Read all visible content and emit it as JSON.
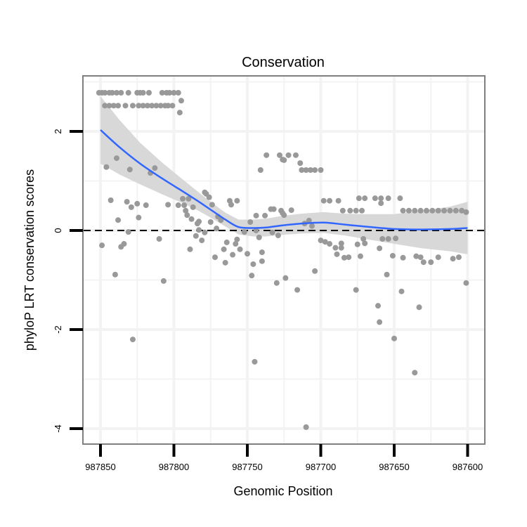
{
  "chart_data": {
    "type": "scatter",
    "title": "Conservation",
    "xlabel": "Genomic Position",
    "ylabel": "phyloP LRT conservation scores",
    "xlim": [
      987862,
      987588
    ],
    "x_reversed": true,
    "ylim": [
      -4.3,
      3.15
    ],
    "xticks": [
      987850,
      987800,
      987750,
      987700,
      987650,
      987600
    ],
    "xtick_labels": [
      "987850",
      "987800",
      "987750",
      "987700",
      "987650",
      "987600"
    ],
    "yticks": [
      2,
      0,
      -2,
      -4
    ],
    "ytick_labels": [
      "2",
      "0",
      "-2",
      "-4"
    ],
    "grid": true,
    "reference_line": {
      "y": 0,
      "style": "dashed",
      "color": "#000000"
    },
    "colors": {
      "points": "#999999",
      "smooth": "#3366ff",
      "ribbon": "#d6d6d6"
    },
    "points": [
      [
        987851,
        2.78
      ],
      [
        987849,
        2.78
      ],
      [
        987847,
        2.78
      ],
      [
        987844,
        2.78
      ],
      [
        987842,
        2.78
      ],
      [
        987839,
        2.78
      ],
      [
        987836,
        2.78
      ],
      [
        987831,
        2.78
      ],
      [
        987825,
        2.78
      ],
      [
        987823,
        2.78
      ],
      [
        987821,
        2.78
      ],
      [
        987817,
        2.78
      ],
      [
        987808,
        2.78
      ],
      [
        987805,
        2.78
      ],
      [
        987803,
        2.78
      ],
      [
        987800,
        2.78
      ],
      [
        987797,
        2.78
      ],
      [
        987847,
        2.52
      ],
      [
        987844,
        2.52
      ],
      [
        987841,
        2.52
      ],
      [
        987838,
        2.52
      ],
      [
        987833,
        2.52
      ],
      [
        987828,
        2.52
      ],
      [
        987824,
        2.52
      ],
      [
        987821,
        2.52
      ],
      [
        987818,
        2.52
      ],
      [
        987815,
        2.52
      ],
      [
        987812,
        2.52
      ],
      [
        987809,
        2.52
      ],
      [
        987806,
        2.52
      ],
      [
        987804,
        2.52
      ],
      [
        987801,
        2.52
      ],
      [
        987795,
        2.62
      ],
      [
        987796,
        2.38
      ],
      [
        987839,
        1.46
      ],
      [
        987846,
        1.28
      ],
      [
        987830,
        1.23
      ],
      [
        987816,
        1.16
      ],
      [
        987813,
        1.26
      ],
      [
        987843,
        0.61
      ],
      [
        987832,
        0.58
      ],
      [
        987829,
        0.47
      ],
      [
        987825,
        0.54
      ],
      [
        987819,
        0.51
      ],
      [
        987838,
        0.21
      ],
      [
        987824,
        0.26
      ],
      [
        987831,
        -0.03
      ],
      [
        987849,
        -0.3
      ],
      [
        987836,
        -0.33
      ],
      [
        987834,
        -0.27
      ],
      [
        987810,
        -0.17
      ],
      [
        987840,
        -0.89
      ],
      [
        987807,
        -1.02
      ],
      [
        987828,
        -2.2
      ],
      [
        987804,
        0.52
      ],
      [
        987797,
        0.51
      ],
      [
        987793,
        0.51
      ],
      [
        987794,
        0.64
      ],
      [
        987790,
        0.64
      ],
      [
        987792,
        0.4
      ],
      [
        987791,
        0.31
      ],
      [
        987788,
        0.23
      ],
      [
        987787,
        0.47
      ],
      [
        987779,
        0.77
      ],
      [
        987778,
        0.74
      ],
      [
        987776,
        0.67
      ],
      [
        987774,
        0.52
      ],
      [
        987784,
        0.14
      ],
      [
        987783,
        0.18
      ],
      [
        987783,
        0.01
      ],
      [
        987775,
        0.17
      ],
      [
        987785,
        -0.11
      ],
      [
        987779,
        -0.04
      ],
      [
        987781,
        -0.2
      ],
      [
        987789,
        -0.38
      ],
      [
        987771,
        0.04
      ],
      [
        987770,
        0.28
      ],
      [
        987768,
        0.21
      ],
      [
        987762,
        0.6
      ],
      [
        987757,
        0.6
      ],
      [
        987761,
        0.52
      ],
      [
        987764,
        -0.24
      ],
      [
        987758,
        -0.27
      ],
      [
        987757,
        -0.18
      ],
      [
        987766,
        -0.38
      ],
      [
        987755,
        -0.38
      ],
      [
        987760,
        -0.49
      ],
      [
        987772,
        -0.54
      ],
      [
        987765,
        -0.65
      ],
      [
        987750,
        -0.47
      ],
      [
        987746,
        -0.68
      ],
      [
        987747,
        -0.91
      ],
      [
        987740,
        -0.44
      ],
      [
        987740,
        -0.62
      ],
      [
        987742,
        -0.14
      ],
      [
        987748,
        0.17
      ],
      [
        987744,
        0.3
      ],
      [
        987738,
        0.3
      ],
      [
        987734,
        0.43
      ],
      [
        987732,
        0.43
      ],
      [
        987727,
        0.4
      ],
      [
        987725,
        0.31
      ],
      [
        987752,
        -0.03
      ],
      [
        987744,
        0.0
      ],
      [
        987733,
        -0.04
      ],
      [
        987729,
        -0.1
      ],
      [
        987737,
        1.52
      ],
      [
        987741,
        1.22
      ],
      [
        987728,
        1.52
      ],
      [
        987726,
        1.43
      ],
      [
        987730,
        -1.06
      ],
      [
        987724,
        -0.96
      ],
      [
        987745,
        -2.65
      ],
      [
        987710,
        -3.97
      ],
      [
        987722,
        1.52
      ],
      [
        987717,
        1.52
      ],
      [
        987725,
        1.42
      ],
      [
        987714,
        1.36
      ],
      [
        987713,
        1.22
      ],
      [
        987710,
        1.22
      ],
      [
        987707,
        1.22
      ],
      [
        987704,
        1.22
      ],
      [
        987700,
        1.22
      ],
      [
        987726,
        0.35
      ],
      [
        987720,
        0.41
      ],
      [
        987711,
        0.14
      ],
      [
        987708,
        0.2
      ],
      [
        987706,
        0.09
      ],
      [
        987698,
        0.6
      ],
      [
        987694,
        0.6
      ],
      [
        987688,
        0.6
      ],
      [
        987685,
        0.4
      ],
      [
        987680,
        0.4
      ],
      [
        987676,
        0.4
      ],
      [
        987672,
        0.4
      ],
      [
        987674,
        0.65
      ],
      [
        987670,
        0.65
      ],
      [
        987663,
        0.65
      ],
      [
        987659,
        0.65
      ],
      [
        987654,
        0.65
      ],
      [
        987646,
        0.65
      ],
      [
        987659,
        0.55
      ],
      [
        987644,
        0.4
      ],
      [
        987640,
        0.4
      ],
      [
        987636,
        0.4
      ],
      [
        987632,
        0.4
      ],
      [
        987628,
        0.4
      ],
      [
        987624,
        0.4
      ],
      [
        987620,
        0.4
      ],
      [
        987616,
        0.4
      ],
      [
        987612,
        0.4
      ],
      [
        987608,
        0.4
      ],
      [
        987604,
        0.4
      ],
      [
        987601,
        0.37
      ],
      [
        987700,
        -0.2
      ],
      [
        987697,
        -0.23
      ],
      [
        987694,
        -0.27
      ],
      [
        987690,
        -0.35
      ],
      [
        987686,
        -0.35
      ],
      [
        987686,
        -0.26
      ],
      [
        987689,
        -0.48
      ],
      [
        987684,
        -0.55
      ],
      [
        987681,
        -0.54
      ],
      [
        987675,
        -0.28
      ],
      [
        987671,
        -0.17
      ],
      [
        987670,
        -0.26
      ],
      [
        987673,
        -0.52
      ],
      [
        987660,
        -0.36
      ],
      [
        987658,
        -0.17
      ],
      [
        987654,
        -0.17
      ],
      [
        987649,
        -0.16
      ],
      [
        987651,
        -0.51
      ],
      [
        987644,
        -0.55
      ],
      [
        987635,
        -0.52
      ],
      [
        987632,
        -0.54
      ],
      [
        987630,
        -0.64
      ],
      [
        987625,
        -0.64
      ],
      [
        987620,
        -0.54
      ],
      [
        987610,
        -0.57
      ],
      [
        987606,
        -0.54
      ],
      [
        987704,
        -0.82
      ],
      [
        987655,
        -0.89
      ],
      [
        987716,
        -1.2
      ],
      [
        987676,
        -1.2
      ],
      [
        987661,
        -1.52
      ],
      [
        987660,
        -1.85
      ],
      [
        987650,
        -2.18
      ],
      [
        987645,
        -1.23
      ],
      [
        987633,
        -1.55
      ],
      [
        987636,
        -2.87
      ],
      [
        987601,
        -1.06
      ]
    ],
    "smooth": {
      "x": [
        987850,
        987837,
        987823,
        987808,
        987794,
        987784,
        987775,
        987765,
        987756,
        987746,
        987737,
        987727,
        987713,
        987698,
        987684,
        987670,
        987650,
        987631,
        987612,
        987600
      ],
      "y": [
        2.03,
        1.68,
        1.35,
        1.05,
        0.79,
        0.6,
        0.42,
        0.22,
        0.07,
        0.05,
        0.06,
        0.1,
        0.14,
        0.16,
        0.12,
        0.08,
        0.03,
        0.02,
        0.03,
        0.05
      ],
      "se": [
        0.68,
        0.55,
        0.42,
        0.32,
        0.24,
        0.19,
        0.16,
        0.14,
        0.15,
        0.17,
        0.18,
        0.19,
        0.2,
        0.21,
        0.22,
        0.25,
        0.3,
        0.38,
        0.45,
        0.53
      ]
    }
  }
}
